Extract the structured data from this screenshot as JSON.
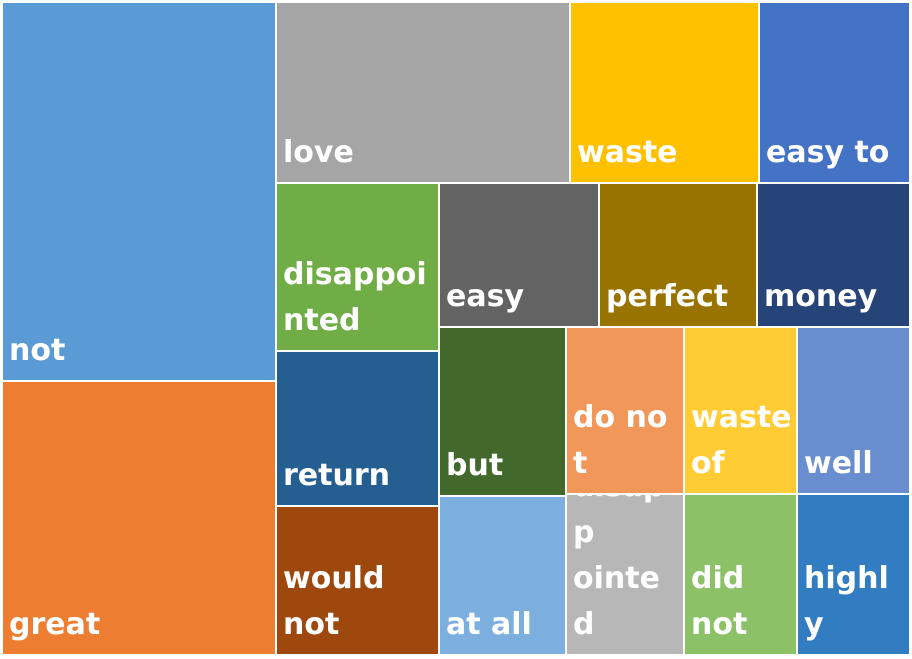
{
  "chart_data": {
    "type": "treemap",
    "title": "",
    "items": [
      {
        "label": "not",
        "color": "#5B9BD5"
      },
      {
        "label": "great",
        "color": "#ED7D31"
      },
      {
        "label": "love",
        "color": "#A5A5A5"
      },
      {
        "label": "waste",
        "color": "#FFC000"
      },
      {
        "label": "easy to",
        "color": "#4472C4"
      },
      {
        "label": "disappoi\nnted",
        "color": "#70AD47"
      },
      {
        "label": "easy",
        "color": "#636363"
      },
      {
        "label": "perfect",
        "color": "#997300"
      },
      {
        "label": "money",
        "color": "#264478"
      },
      {
        "label": "return",
        "color": "#255E91"
      },
      {
        "label": "but",
        "color": "#43682B"
      },
      {
        "label": "do not",
        "color": "#F1975A"
      },
      {
        "label": "waste\nof",
        "color": "#FFCD33"
      },
      {
        "label": "well",
        "color": "#698ED0"
      },
      {
        "label": "would\nnot",
        "color": "#9E480E"
      },
      {
        "label": "at all",
        "color": "#7CAFDD"
      },
      {
        "label": "very\ndisapp\nointed",
        "color": "#B7B7B7"
      },
      {
        "label": "did\nnot",
        "color": "#8CC168"
      },
      {
        "label": "highly",
        "color": "#327DC2"
      }
    ]
  }
}
